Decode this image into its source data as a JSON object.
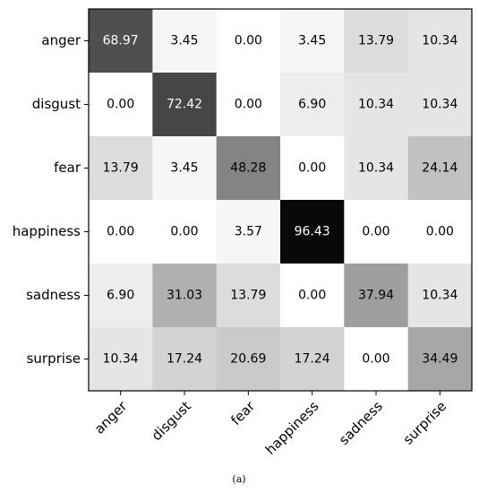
{
  "chart_data": {
    "type": "heatmap",
    "row_labels": [
      "anger",
      "disgust",
      "fear",
      "happiness",
      "sadness",
      "surprise"
    ],
    "col_labels": [
      "anger",
      "disgust",
      "fear",
      "happiness",
      "sadness",
      "surprise"
    ],
    "values": [
      [
        68.97,
        3.45,
        0.0,
        3.45,
        13.79,
        10.34
      ],
      [
        0.0,
        72.42,
        0.0,
        6.9,
        10.34,
        10.34
      ],
      [
        13.79,
        3.45,
        48.28,
        0.0,
        10.34,
        24.14
      ],
      [
        0.0,
        0.0,
        3.57,
        96.43,
        0.0,
        0.0
      ],
      [
        6.9,
        31.03,
        13.79,
        0.0,
        37.94,
        10.34
      ],
      [
        10.34,
        17.24,
        20.69,
        17.24,
        0.0,
        34.49
      ]
    ],
    "value_range": [
      0,
      100
    ],
    "colormap": "greys",
    "caption": "(a)"
  }
}
